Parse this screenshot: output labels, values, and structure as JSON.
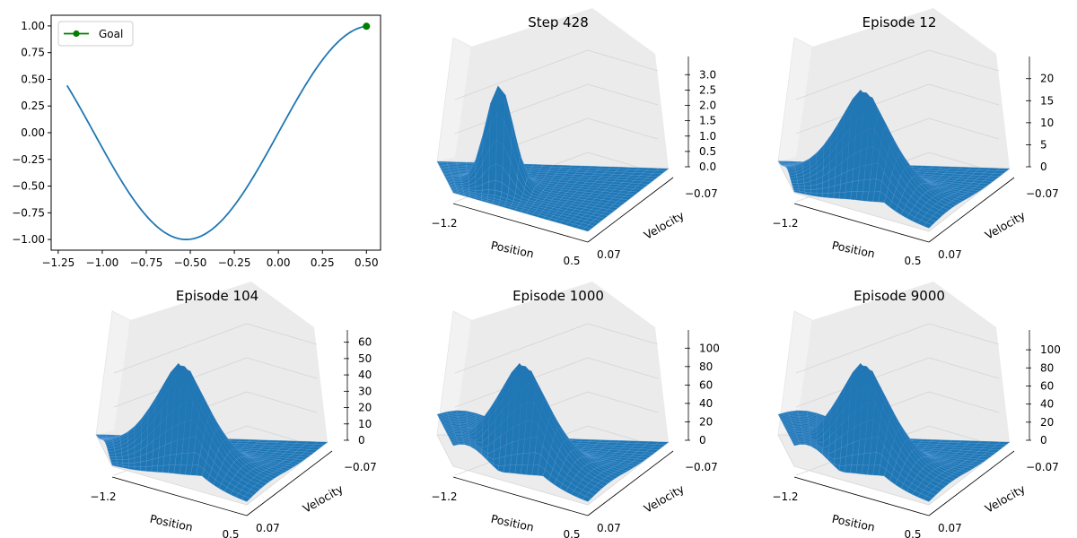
{
  "chart_data": [
    {
      "type": "line",
      "title": "",
      "xlabel": "",
      "ylabel": "",
      "xlim": [
        -1.29,
        0.58
      ],
      "ylim": [
        -1.1,
        1.1
      ],
      "x_ticks": [
        "−1.25",
        "−1.00",
        "−0.75",
        "−0.50",
        "−0.25",
        "0.00",
        "0.25",
        "0.50"
      ],
      "y_ticks": [
        "1.00",
        "0.75",
        "0.50",
        "0.25",
        "0.00",
        "−0.25",
        "−0.50",
        "−0.75",
        "−1.00"
      ],
      "series": [
        {
          "function": "sin(3x)",
          "color": "#1f77b4",
          "x": [
            -1.2,
            -1.1,
            -1.0,
            -0.9,
            -0.8,
            -0.7,
            -0.6,
            -0.5236,
            -0.4,
            -0.3,
            -0.2,
            -0.1,
            0.0,
            0.1,
            0.2,
            0.3,
            0.4,
            0.5
          ],
          "values": [
            0.443,
            0.158,
            -0.141,
            -0.427,
            -0.675,
            -0.863,
            -0.974,
            -1.0,
            -0.932,
            -0.783,
            -0.565,
            -0.296,
            0.0,
            0.296,
            0.565,
            0.783,
            0.932,
            0.997
          ]
        },
        {
          "name": "Goal",
          "color": "#008000",
          "x": [
            0.5
          ],
          "values": [
            0.997
          ]
        }
      ],
      "legend": {
        "position": "top-left",
        "label": "Goal"
      },
      "grid": false
    },
    {
      "type": "surface",
      "title": "Step 428",
      "xlabel": "Position",
      "ylabel": "Velocity",
      "x_ticks": [
        "−1.2",
        "0.5"
      ],
      "y_ticks": [
        "−0.07",
        "0.07"
      ],
      "z_ticks": [
        "0.0",
        "0.5",
        "1.0",
        "1.5",
        "2.0",
        "2.5",
        "3.0"
      ],
      "zlim": [
        0,
        3.3
      ],
      "peak_value": 3.1,
      "color": "#1f77b4"
    },
    {
      "type": "surface",
      "title": "Episode 12",
      "xlabel": "Position",
      "ylabel": "Velocity",
      "x_ticks": [
        "−1.2",
        "0.5"
      ],
      "y_ticks": [
        "−0.07",
        "0.07"
      ],
      "z_ticks": [
        "0",
        "5",
        "10",
        "15",
        "20"
      ],
      "zlim": [
        0,
        23
      ],
      "peak_value": 21,
      "color": "#1f77b4"
    },
    {
      "type": "surface",
      "title": "Episode 104",
      "xlabel": "Position",
      "ylabel": "Velocity",
      "x_ticks": [
        "−1.2",
        "0.5"
      ],
      "y_ticks": [
        "−0.07",
        "0.07"
      ],
      "z_ticks": [
        "0",
        "10",
        "20",
        "30",
        "40",
        "50",
        "60"
      ],
      "zlim": [
        0,
        62
      ],
      "peak_value": 57,
      "color": "#1f77b4"
    },
    {
      "type": "surface",
      "title": "Episode 1000",
      "xlabel": "Position",
      "ylabel": "Velocity",
      "x_ticks": [
        "−1.2",
        "0.5"
      ],
      "y_ticks": [
        "−0.07",
        "0.07"
      ],
      "z_ticks": [
        "0",
        "20",
        "40",
        "60",
        "80",
        "100"
      ],
      "zlim": [
        0,
        110
      ],
      "peak_value": 102,
      "color": "#1f77b4"
    },
    {
      "type": "surface",
      "title": "Episode 9000",
      "xlabel": "Position",
      "ylabel": "Velocity",
      "x_ticks": [
        "−1.2",
        "0.5"
      ],
      "y_ticks": [
        "−0.07",
        "0.07"
      ],
      "z_ticks": [
        "0",
        "20",
        "40",
        "60",
        "80",
        "100"
      ],
      "zlim": [
        0,
        112
      ],
      "peak_value": 103,
      "color": "#1f77b4"
    }
  ]
}
